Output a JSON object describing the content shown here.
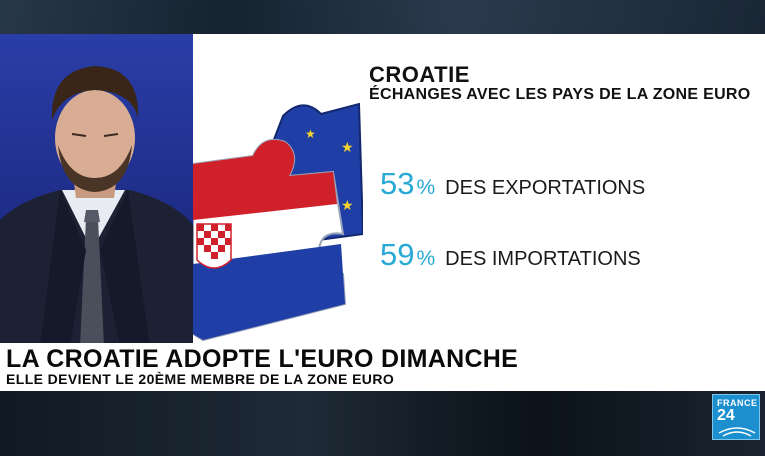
{
  "graphic": {
    "title": "CROATIE",
    "subtitle": "ÉCHANGES AVEC LES PAYS DE LA ZONE EURO",
    "stats": [
      {
        "value": "53",
        "unit": "%",
        "label": "DES EXPORTATIONS"
      },
      {
        "value": "59",
        "unit": "%",
        "label": "DES IMPORTATIONS"
      }
    ]
  },
  "lower_third": {
    "headline": "LA CROATIE ADOPTE L'EURO DIMANCHE",
    "subline": "ELLE DEVIENT LE 20ÈME MEMBRE DE LA ZONE EURO"
  },
  "logo": {
    "line1": "FRANCE",
    "line2": "24"
  },
  "colors": {
    "accent": "#28a9d6",
    "eu_blue": "#1f3fa6",
    "eu_star": "#f6d42a",
    "croatia_red": "#d0202a",
    "logo_blue": "#1c8fcf"
  }
}
